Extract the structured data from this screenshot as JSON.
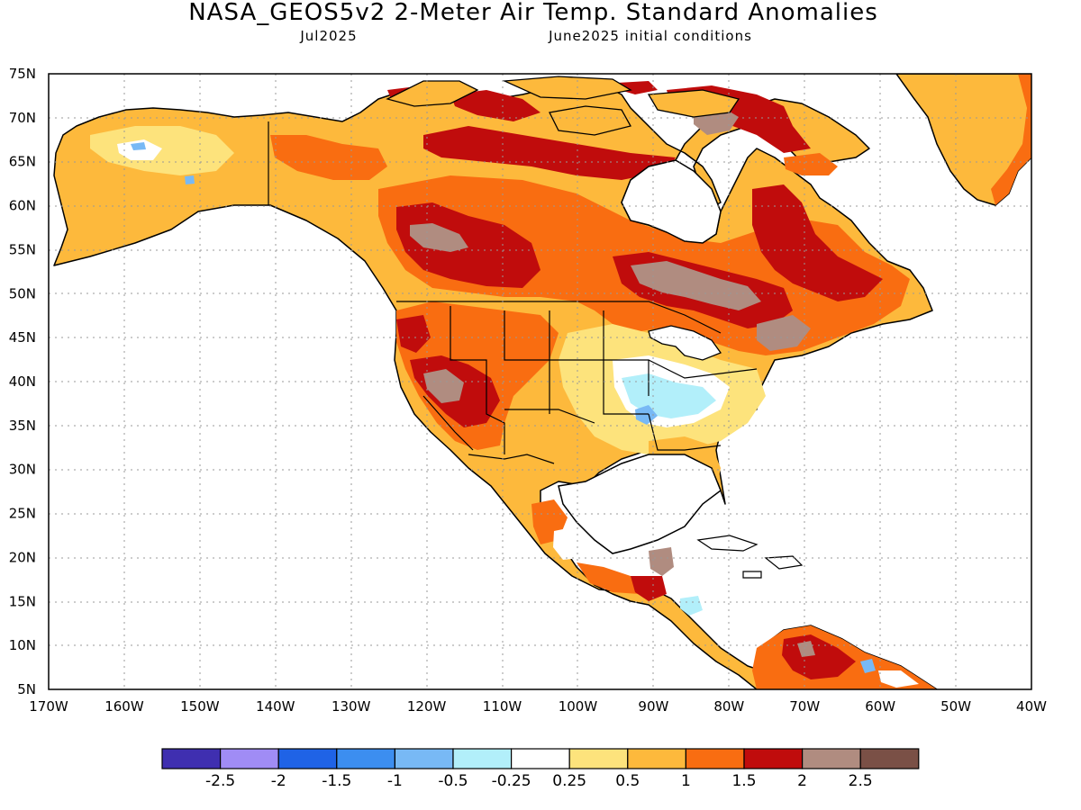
{
  "title": "NASA_GEOS5v2 2-Meter Air Temp. Standard Anomalies",
  "valid_month": "Jul2025",
  "initial_conditions": "June2025 initial conditions",
  "lat_labels": [
    "75N",
    "70N",
    "65N",
    "60N",
    "55N",
    "50N",
    "45N",
    "40N",
    "35N",
    "30N",
    "25N",
    "20N",
    "15N",
    "10N",
    "5N"
  ],
  "lon_labels": [
    "170W",
    "160W",
    "150W",
    "140W",
    "130W",
    "120W",
    "110W",
    "100W",
    "90W",
    "80W",
    "70W",
    "60W",
    "50W",
    "40W"
  ],
  "colorbar": {
    "colors": [
      "#3f2fb0",
      "#a08cf5",
      "#1f63e6",
      "#3c8ef0",
      "#78b9f5",
      "#b2effa",
      "#ffffff",
      "#fde37c",
      "#fdb93c",
      "#f96d11",
      "#c00c0c",
      "#b08c80",
      "#7a5046"
    ],
    "labels": [
      "-2.5",
      "-2",
      "-1.5",
      "-1",
      "-0.5",
      "-0.25",
      "0.25",
      "0.5",
      "1",
      "1.5",
      "2",
      "2.5"
    ]
  }
}
